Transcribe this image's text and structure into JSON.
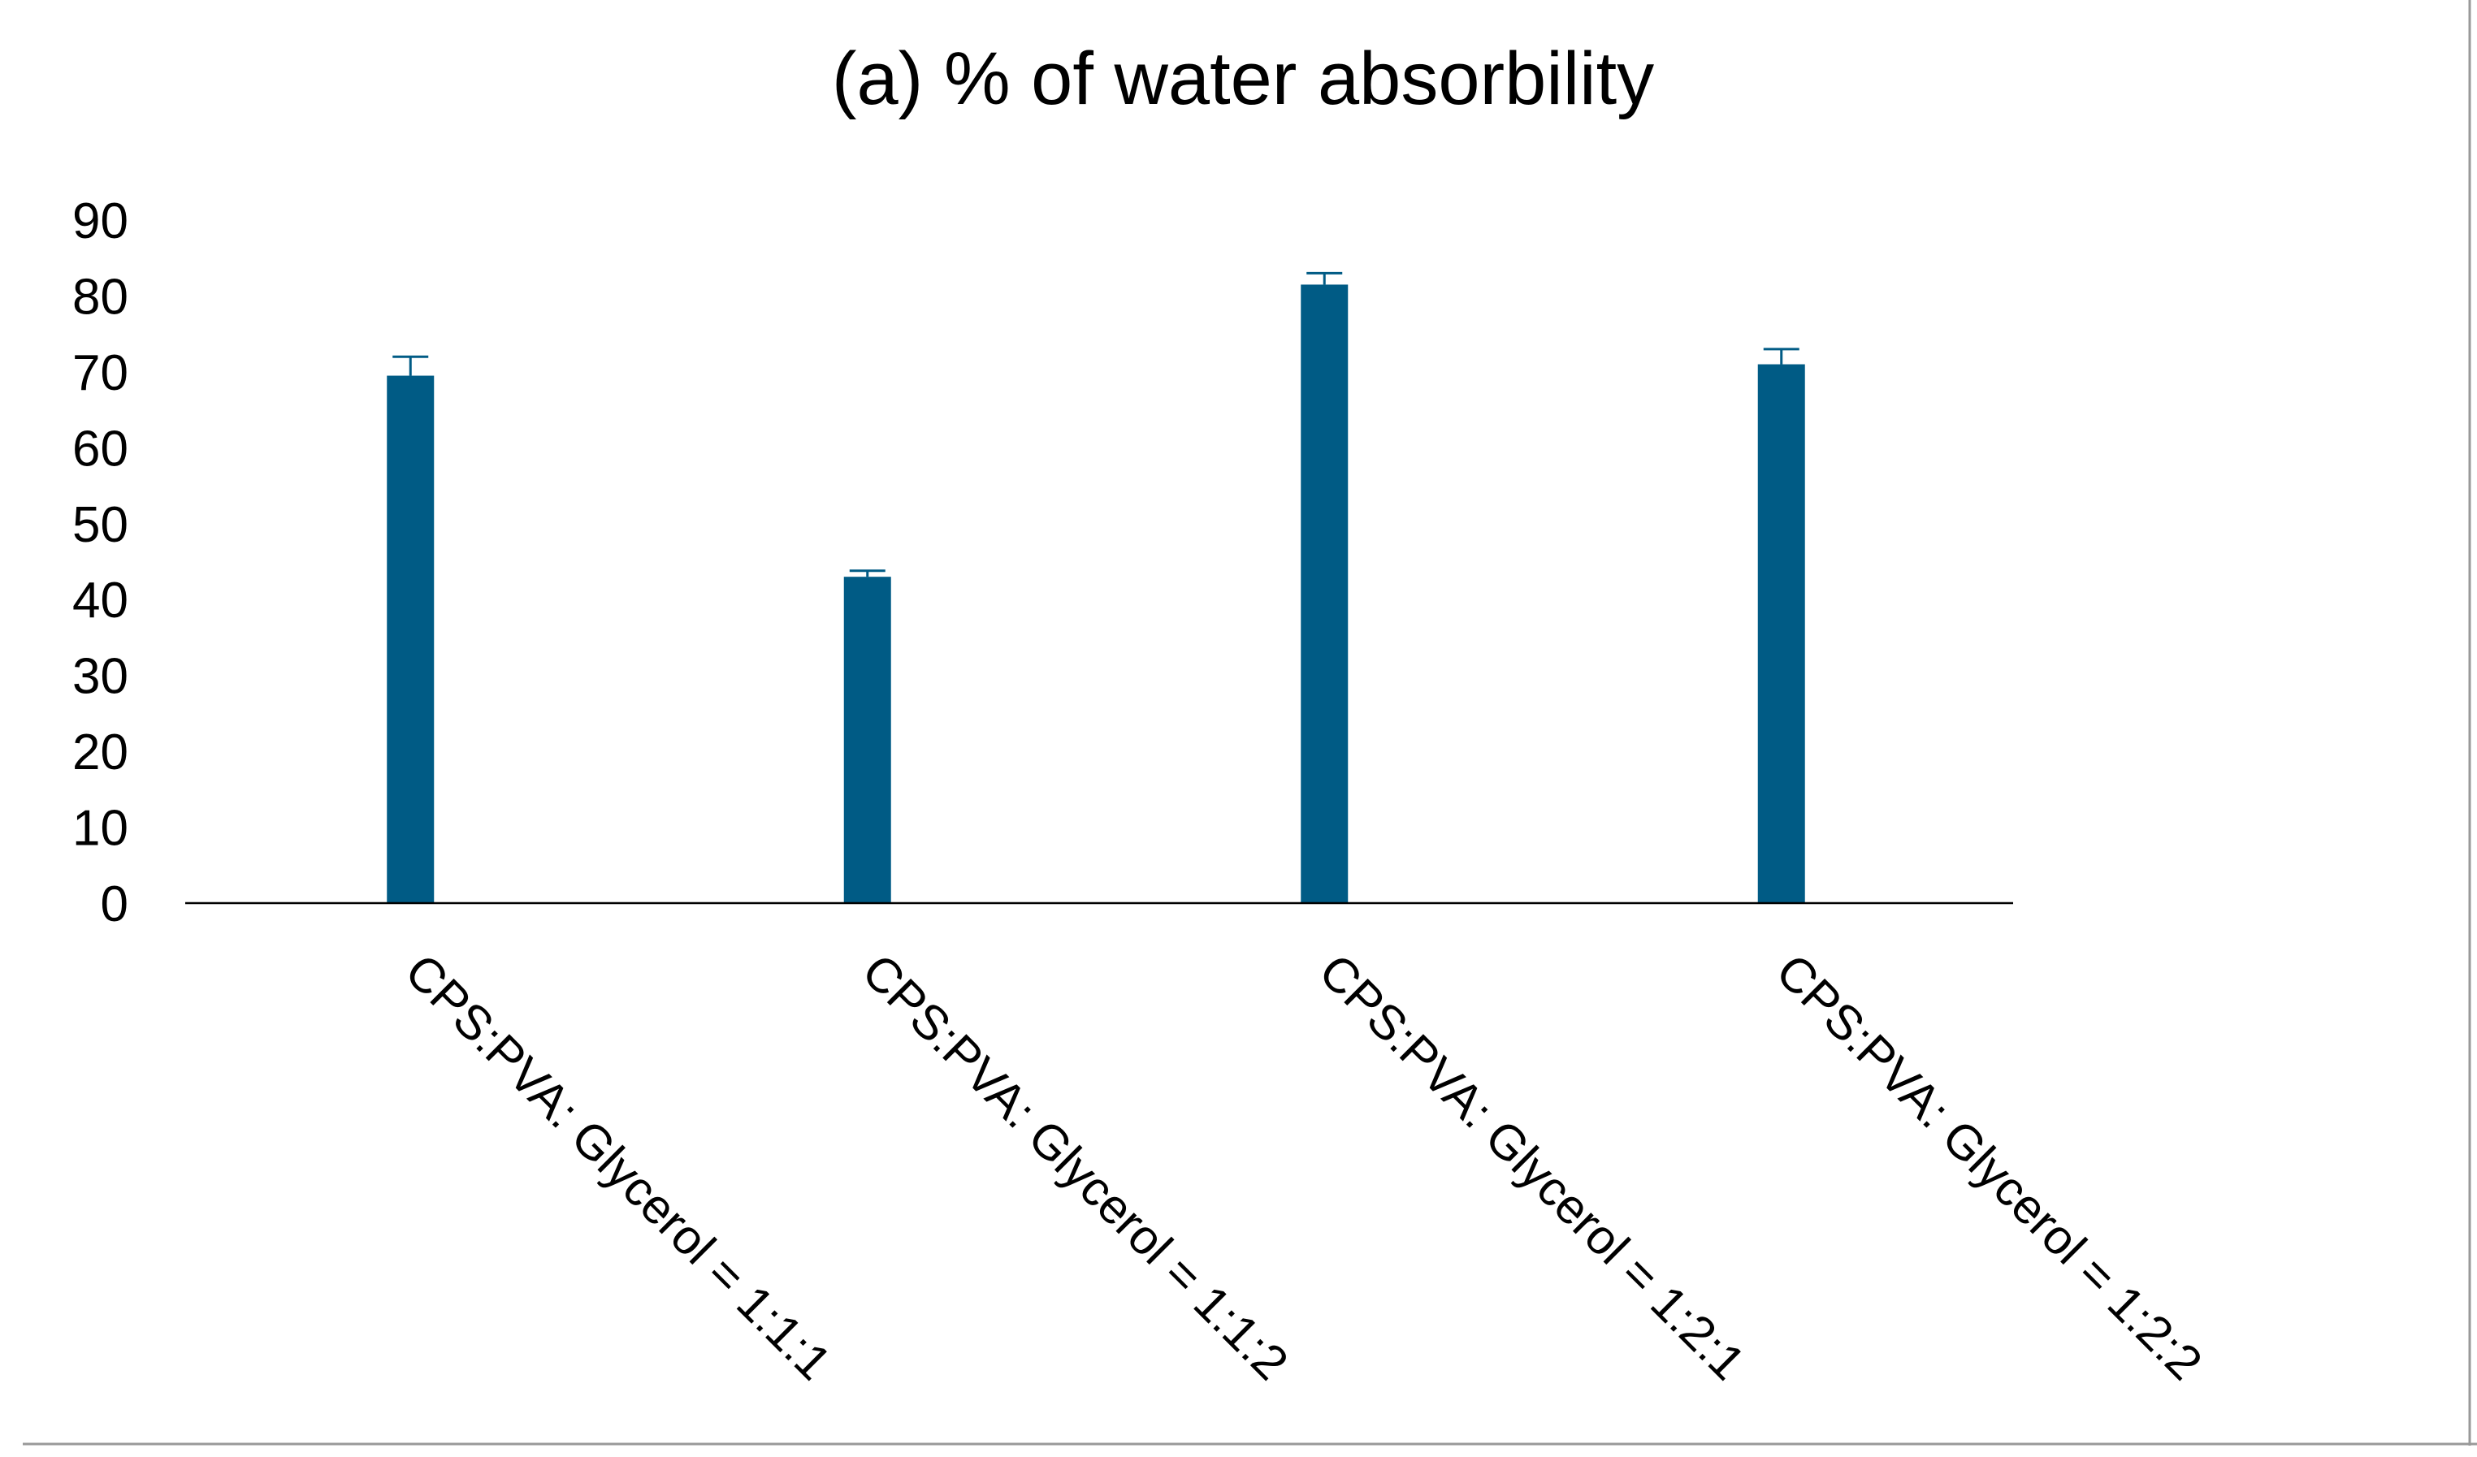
{
  "chart_data": {
    "type": "bar",
    "title": "(a) % of water absorbility",
    "xlabel": "",
    "ylabel": "",
    "categories": [
      "CPS:PVA: Glycerol = 1:1:1",
      "CPS:PVA: Glycerol = 1:1:2",
      "CPS:PVA: Glycerol = 1:2:1",
      "CPS:PVA: Glycerol = 1:2:2"
    ],
    "values": [
      69.5,
      43,
      81.5,
      71
    ],
    "error": [
      2.5,
      0.8,
      1.5,
      2
    ],
    "ylim": [
      0,
      90
    ],
    "yticks": [
      0,
      10,
      20,
      30,
      40,
      50,
      60,
      70,
      80,
      90
    ],
    "bar_color": "#005b85",
    "grid": false,
    "legend": "none"
  }
}
